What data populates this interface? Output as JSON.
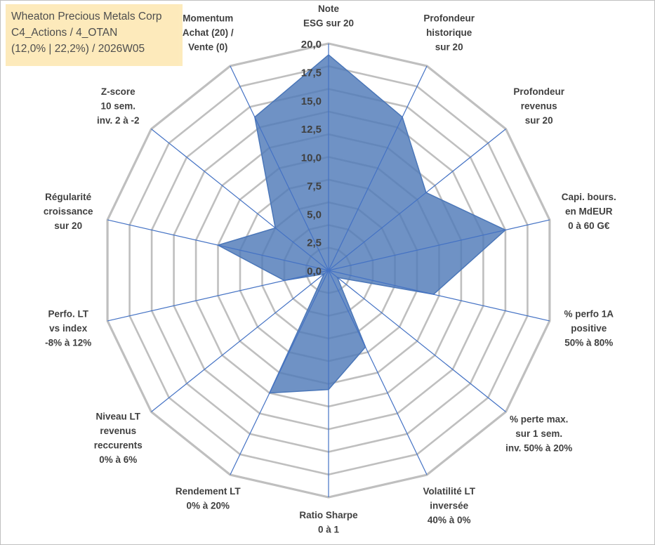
{
  "title": {
    "line1": "Wheaton Precious Metals Corp",
    "line2": "C4_Actions / 4_OTAN",
    "line3": "(12,0% | 22,2%) / 2026W05"
  },
  "chart_data": {
    "type": "radar",
    "rmin": 0,
    "rmax": 20,
    "ticks": [
      "0,0",
      "2,5",
      "5,0",
      "7,5",
      "10,0",
      "12,5",
      "15,0",
      "17,5",
      "20,0"
    ],
    "grid": true,
    "grid_levels": 10,
    "axes": [
      [
        "Note",
        "ESG sur 20"
      ],
      [
        "Profondeur",
        "historique",
        "sur 20"
      ],
      [
        "Profondeur",
        "revenus",
        "sur 20"
      ],
      [
        "Capi. bours.",
        "en MdEUR",
        "0 à 60 G€"
      ],
      [
        "% perfo 1A",
        "positive",
        "50% à 80%"
      ],
      [
        "% perte max.",
        "sur 1 sem.",
        "inv. 50% à 20%"
      ],
      [
        "Volatilité LT",
        "inversée",
        "40% à 0%"
      ],
      [
        "Ratio Sharpe",
        "0 à 1"
      ],
      [
        "Rendement LT",
        "0% à 20%"
      ],
      [
        "Niveau LT",
        "revenus",
        "reccurents",
        "0% à 6%"
      ],
      [
        "Perfo. LT",
        "vs index",
        "-8% à 12%"
      ],
      [
        "Régularité",
        "croissance",
        "sur 20"
      ],
      [
        "Z-score",
        "10 sem.",
        "inv. 2 à -2"
      ],
      [
        "Momentum",
        "Achat (20) /",
        "Vente (0)"
      ]
    ],
    "series": [
      {
        "values": [
          19,
          15,
          11,
          16,
          9.5,
          1,
          7.5,
          10.5,
          12,
          0.5,
          4,
          10,
          6,
          15
        ],
        "fill": "#4f7ab8",
        "fill_opacity": 0.82,
        "stroke": "#4a76b8"
      }
    ],
    "colors": {
      "grid": "#bfbfbf",
      "spokes": "#4472c4",
      "text": "#404040"
    }
  }
}
